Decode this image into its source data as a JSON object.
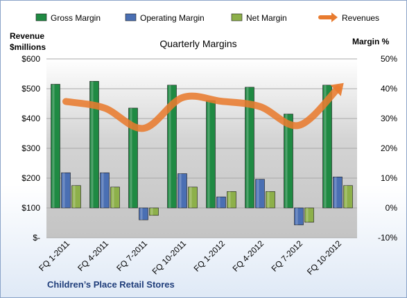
{
  "chart_data": {
    "type": "bar",
    "title": "Quarterly Margins",
    "ylabel_left": [
      "Revenue",
      "$millions"
    ],
    "ylabel_right": "Margin %",
    "footer": "Children’s Place Retail Stores",
    "categories": [
      "FQ 1-2011",
      "FQ 4-2011",
      "FQ 7-2011",
      "FQ 10-2011",
      "FQ 1-2012",
      "FQ 4-2012",
      "FQ 7-2012",
      "FQ 10-2012"
    ],
    "left_axis": {
      "min": 0,
      "max": 600,
      "step": 100,
      "tick_labels": [
        "$-",
        "$100",
        "$200",
        "$300",
        "$400",
        "$500",
        "$600"
      ]
    },
    "right_axis": {
      "min": -10,
      "max": 50,
      "step": 10,
      "tick_labels": [
        "-10%",
        "0%",
        "10%",
        "20%",
        "30%",
        "40%",
        "50%"
      ]
    },
    "grid": true,
    "legend_position": "top",
    "series": [
      {
        "name": "Gross Margin",
        "kind": "bar",
        "axis": "right",
        "color": "#1f8a43",
        "values": [
          41.5,
          42.5,
          33.5,
          41.2,
          36.0,
          40.5,
          31.5,
          41.2
        ]
      },
      {
        "name": "Operating Margin",
        "kind": "bar",
        "axis": "right",
        "color": "#4a6fb3",
        "values": [
          11.8,
          11.8,
          -4.0,
          11.5,
          3.7,
          9.6,
          -5.7,
          10.4
        ]
      },
      {
        "name": "Net Margin",
        "kind": "bar",
        "axis": "right",
        "color": "#8db04a",
        "values": [
          7.5,
          7.0,
          -2.5,
          7.0,
          5.5,
          5.5,
          -4.8,
          7.5
        ]
      },
      {
        "name": "Revenues",
        "kind": "line",
        "axis": "left",
        "color": "#e87b2f",
        "values": [
          457,
          435,
          367,
          470,
          458,
          440,
          377,
          500
        ]
      }
    ]
  }
}
